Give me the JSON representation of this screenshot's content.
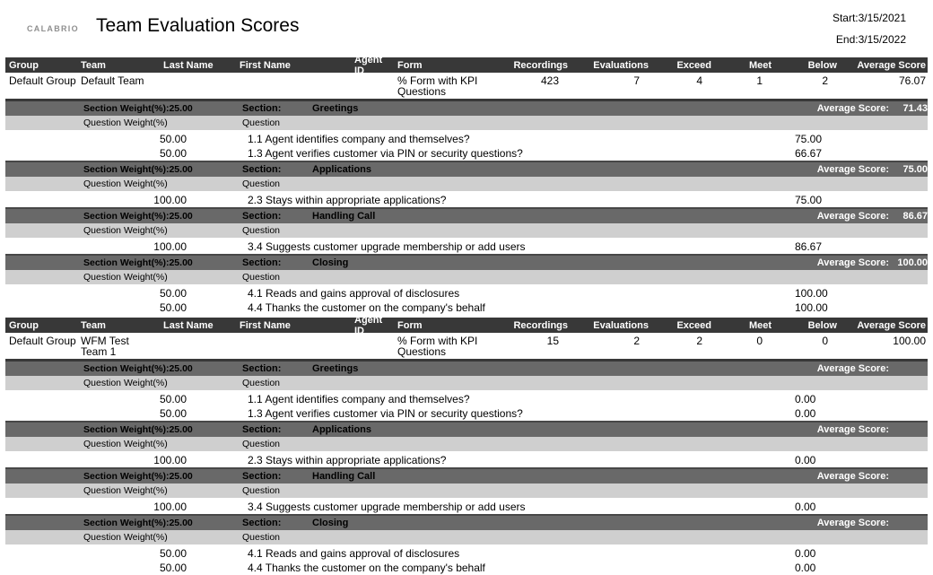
{
  "colors": {
    "table_header_bg": "#383838",
    "section_header_bg": "#696969",
    "question_weight_bg": "#cfcfcf",
    "logo_color": "#8f8f8f",
    "section_avg_text": "#ffffff"
  },
  "header": {
    "logo": "CALABRIO",
    "title": "Team Evaluation Scores",
    "start": "Start:3/15/2021",
    "end": "End:3/15/2022"
  },
  "columns": [
    "Group",
    "Team",
    "Last Name",
    "First Name",
    "Agent ID",
    "Form",
    "Recordings",
    "Evaluations",
    "Exceed",
    "Meet",
    "Below",
    "Average Score"
  ],
  "labels": {
    "section": "Section:",
    "average_score": "Average Score:",
    "question_weight": "Question Weight(%)",
    "question": "Question"
  },
  "teams": [
    {
      "group": "Default Group",
      "team": "Default Team",
      "last_name": "",
      "first_name": "",
      "agent_id": "",
      "form": "% Form with KPI Questions",
      "recordings": "423",
      "evaluations": "7",
      "exceed": "4",
      "meet": "1",
      "below": "2",
      "average_score": "76.07",
      "sections": [
        {
          "weight_label": "Section Weight(%):25.00",
          "name": "Greetings",
          "average": "71.43",
          "questions": [
            {
              "weight": "50.00",
              "text": "1.1 Agent identifies company and themselves?",
              "score": "75.00"
            },
            {
              "weight": "50.00",
              "text": "1.3 Agent verifies customer via PIN or security questions?",
              "score": "66.67"
            }
          ]
        },
        {
          "weight_label": "Section Weight(%):25.00",
          "name": "Applications",
          "average": "75.00",
          "questions": [
            {
              "weight": "100.00",
              "text": "2.3 Stays within appropriate applications?",
              "score": "75.00"
            }
          ]
        },
        {
          "weight_label": "Section Weight(%):25.00",
          "name": "Handling Call",
          "average": "86.67",
          "questions": [
            {
              "weight": "100.00",
              "text": "3.4 Suggests customer upgrade membership or add users",
              "score": "86.67"
            }
          ]
        },
        {
          "weight_label": "Section Weight(%):25.00",
          "name": "Closing",
          "average": "100.00",
          "questions": [
            {
              "weight": "50.00",
              "text": "4.1 Reads and gains approval of disclosures",
              "score": "100.00"
            },
            {
              "weight": "50.00",
              "text": "4.4 Thanks the customer on the company's behalf",
              "score": "100.00"
            }
          ]
        }
      ]
    },
    {
      "group": "Default Group",
      "team": "WFM Test Team 1",
      "last_name": "",
      "first_name": "",
      "agent_id": "",
      "form": "% Form with KPI Questions",
      "recordings": "15",
      "evaluations": "2",
      "exceed": "2",
      "meet": "0",
      "below": "0",
      "average_score": "100.00",
      "sections": [
        {
          "weight_label": "Section Weight(%):25.00",
          "name": "Greetings",
          "average": "",
          "questions": [
            {
              "weight": "50.00",
              "text": "1.1 Agent identifies company and themselves?",
              "score": "0.00"
            },
            {
              "weight": "50.00",
              "text": "1.3 Agent verifies customer via PIN or security questions?",
              "score": "0.00"
            }
          ]
        },
        {
          "weight_label": "Section Weight(%):25.00",
          "name": "Applications",
          "average": "",
          "questions": [
            {
              "weight": "100.00",
              "text": "2.3 Stays within appropriate applications?",
              "score": "0.00"
            }
          ]
        },
        {
          "weight_label": "Section Weight(%):25.00",
          "name": "Handling Call",
          "average": "",
          "questions": [
            {
              "weight": "100.00",
              "text": "3.4 Suggests customer upgrade membership or add users",
              "score": "0.00"
            }
          ]
        },
        {
          "weight_label": "Section Weight(%):25.00",
          "name": "Closing",
          "average": "",
          "questions": [
            {
              "weight": "50.00",
              "text": "4.1 Reads and gains approval of disclosures",
              "score": "0.00"
            },
            {
              "weight": "50.00",
              "text": "4.4 Thanks the customer on the company's behalf",
              "score": "0.00"
            }
          ]
        }
      ]
    }
  ]
}
